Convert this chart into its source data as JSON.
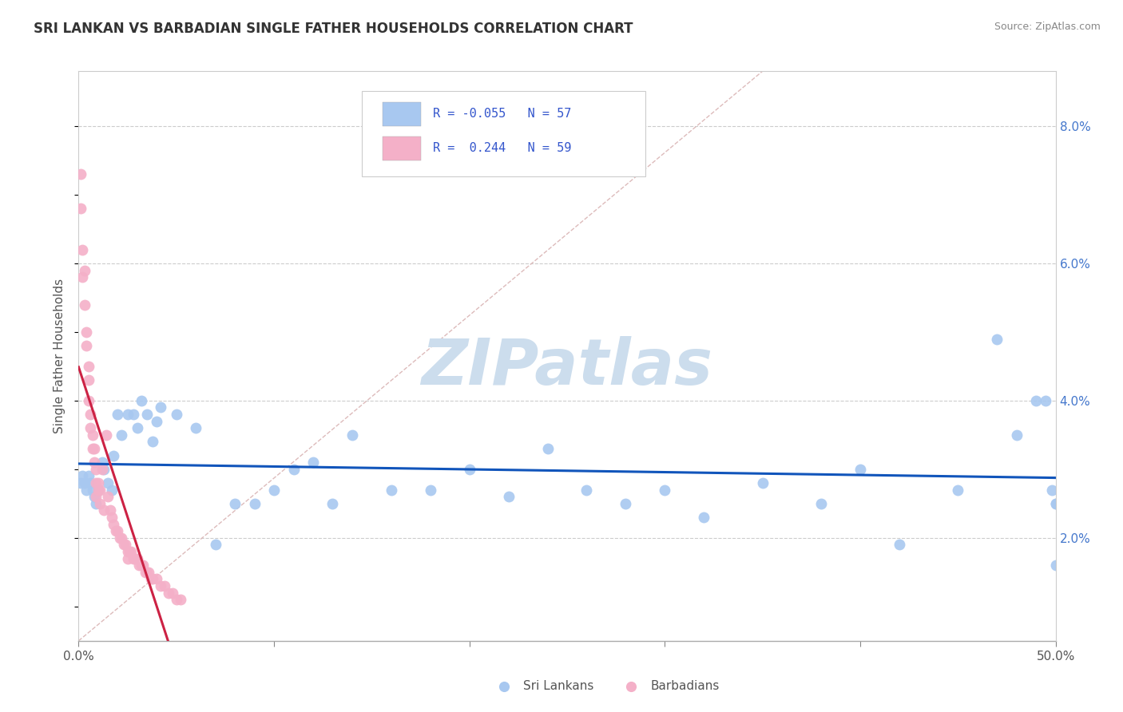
{
  "title": "SRI LANKAN VS BARBADIAN SINGLE FATHER HOUSEHOLDS CORRELATION CHART",
  "source": "Source: ZipAtlas.com",
  "ylabel": "Single Father Households",
  "xlim": [
    0.0,
    0.5
  ],
  "ylim": [
    0.005,
    0.088
  ],
  "xticks": [
    0.0,
    0.1,
    0.2,
    0.3,
    0.4,
    0.5
  ],
  "xtick_labels": [
    "0.0%",
    "",
    "",
    "",
    "",
    "50.0%"
  ],
  "yticks_right": [
    0.02,
    0.04,
    0.06,
    0.08
  ],
  "ytick_labels_right": [
    "2.0%",
    "4.0%",
    "6.0%",
    "8.0%"
  ],
  "sri_lanka_color": "#a8c8f0",
  "barbadian_color": "#f4b0c8",
  "sri_lanka_trend_color": "#1155bb",
  "barbadian_trend_color": "#cc2244",
  "diag_color": "#ddbbbb",
  "sri_lanka_R": -0.055,
  "sri_lanka_N": 57,
  "barbadian_R": 0.244,
  "barbadian_N": 59,
  "watermark": "ZIPatlas",
  "watermark_color": "#ccdded",
  "sri_lankans_x": [
    0.001,
    0.002,
    0.003,
    0.004,
    0.005,
    0.006,
    0.007,
    0.008,
    0.009,
    0.01,
    0.012,
    0.013,
    0.015,
    0.017,
    0.018,
    0.02,
    0.022,
    0.025,
    0.028,
    0.03,
    0.032,
    0.035,
    0.038,
    0.04,
    0.042,
    0.05,
    0.06,
    0.07,
    0.08,
    0.09,
    0.1,
    0.11,
    0.12,
    0.13,
    0.14,
    0.16,
    0.18,
    0.2,
    0.22,
    0.24,
    0.26,
    0.28,
    0.3,
    0.32,
    0.35,
    0.38,
    0.4,
    0.42,
    0.45,
    0.47,
    0.48,
    0.49,
    0.495,
    0.498,
    0.5,
    0.5,
    0.5
  ],
  "sri_lankans_y": [
    0.028,
    0.029,
    0.028,
    0.027,
    0.029,
    0.028,
    0.027,
    0.026,
    0.025,
    0.027,
    0.031,
    0.03,
    0.028,
    0.027,
    0.032,
    0.038,
    0.035,
    0.038,
    0.038,
    0.036,
    0.04,
    0.038,
    0.034,
    0.037,
    0.039,
    0.038,
    0.036,
    0.019,
    0.025,
    0.025,
    0.027,
    0.03,
    0.031,
    0.025,
    0.035,
    0.027,
    0.027,
    0.03,
    0.026,
    0.033,
    0.027,
    0.025,
    0.027,
    0.023,
    0.028,
    0.025,
    0.03,
    0.019,
    0.027,
    0.049,
    0.035,
    0.04,
    0.04,
    0.027,
    0.025,
    0.016,
    0.025
  ],
  "barbadians_x": [
    0.001,
    0.001,
    0.002,
    0.002,
    0.003,
    0.003,
    0.004,
    0.004,
    0.005,
    0.005,
    0.005,
    0.006,
    0.006,
    0.007,
    0.007,
    0.008,
    0.008,
    0.009,
    0.009,
    0.009,
    0.01,
    0.01,
    0.011,
    0.011,
    0.012,
    0.013,
    0.014,
    0.015,
    0.016,
    0.017,
    0.018,
    0.019,
    0.02,
    0.021,
    0.022,
    0.023,
    0.024,
    0.025,
    0.025,
    0.026,
    0.027,
    0.028,
    0.029,
    0.03,
    0.031,
    0.032,
    0.033,
    0.034,
    0.035,
    0.036,
    0.037,
    0.038,
    0.04,
    0.042,
    0.044,
    0.046,
    0.048,
    0.05,
    0.052
  ],
  "barbadians_y": [
    0.073,
    0.068,
    0.062,
    0.058,
    0.059,
    0.054,
    0.05,
    0.048,
    0.045,
    0.043,
    0.04,
    0.038,
    0.036,
    0.035,
    0.033,
    0.033,
    0.031,
    0.03,
    0.028,
    0.026,
    0.028,
    0.027,
    0.027,
    0.025,
    0.03,
    0.024,
    0.035,
    0.026,
    0.024,
    0.023,
    0.022,
    0.021,
    0.021,
    0.02,
    0.02,
    0.019,
    0.019,
    0.018,
    0.017,
    0.018,
    0.018,
    0.017,
    0.017,
    0.017,
    0.016,
    0.016,
    0.016,
    0.015,
    0.015,
    0.015,
    0.014,
    0.014,
    0.014,
    0.013,
    0.013,
    0.012,
    0.012,
    0.011,
    0.011
  ]
}
